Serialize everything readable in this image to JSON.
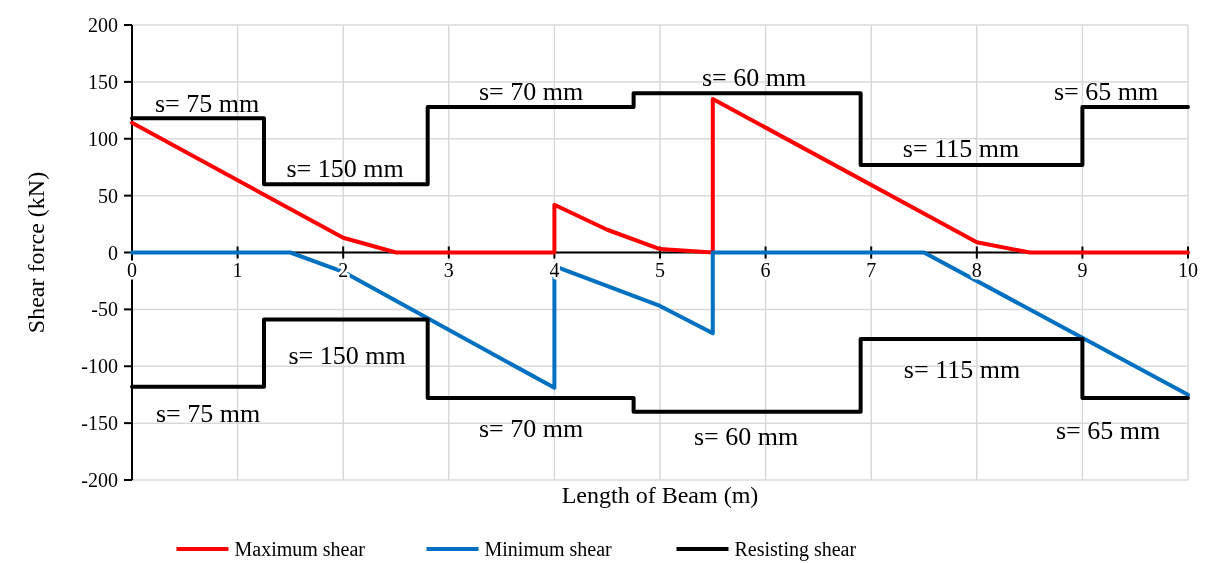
{
  "chart_data": {
    "type": "line",
    "xlabel": "Length of Beam (m)",
    "ylabel": "Shear force (kN)",
    "xlim": [
      0,
      10
    ],
    "xticks": [
      0,
      1,
      2,
      3,
      4,
      5,
      6,
      7,
      8,
      9,
      10
    ],
    "ylim": [
      -200,
      200
    ],
    "yticks": [
      -200,
      -150,
      -100,
      -50,
      0,
      50,
      100,
      150,
      200
    ],
    "grid": true,
    "legend": "bottom",
    "marker": "none",
    "line_style": "solid",
    "series": [
      {
        "name": "Maximum shear",
        "color": "#ff0000",
        "x": [
          0,
          2,
          2.5,
          4,
          4,
          4.5,
          5,
          5.5,
          5.5,
          8,
          8.5,
          10
        ],
        "values": [
          114,
          13,
          0,
          0,
          42,
          20,
          3,
          0,
          135,
          9,
          0,
          0
        ]
      },
      {
        "name": "Minimum shear",
        "color": "#0070c0",
        "x": [
          0,
          1.5,
          2,
          4,
          4,
          5,
          5.5,
          5.5,
          7.5,
          10
        ],
        "values": [
          0,
          0,
          -17,
          -119,
          -12,
          -47,
          -71,
          0,
          0,
          -125
        ]
      },
      {
        "name": "Resisting shear",
        "color": "#000000",
        "x": [
          0,
          1.25,
          1.25,
          2.8,
          2.8,
          4.75,
          4.75,
          6.9,
          6.9,
          9,
          9,
          10
        ],
        "values": [
          118,
          118,
          60,
          60,
          128,
          128,
          140,
          140,
          77,
          77,
          128,
          128
        ]
      },
      {
        "color": "#000000",
        "x": [
          0,
          1.25,
          1.25,
          2.8,
          2.8,
          4.75,
          4.75,
          6.9,
          6.9,
          9,
          9,
          10
        ],
        "values": [
          -118,
          -118,
          -59,
          -59,
          -128,
          -128,
          -140,
          -140,
          -76,
          -76,
          -128,
          -128
        ]
      }
    ],
    "annotations": [
      "s= 75 mm",
      "s= 150 mm",
      "s= 70 mm",
      "s= 60 mm",
      "s= 115 mm",
      "s= 65 mm",
      "s= 75 mm",
      "s= 150 mm",
      "s= 70 mm",
      "s= 60 mm",
      "s= 115 mm",
      "s= 65 mm"
    ]
  }
}
